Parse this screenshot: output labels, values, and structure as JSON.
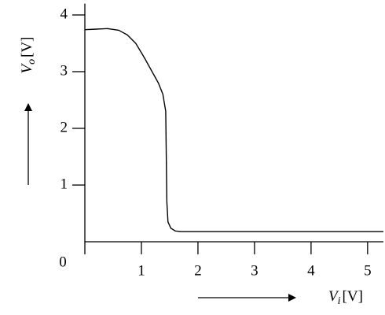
{
  "chart_data": {
    "type": "line",
    "x_label": {
      "symbol": "V",
      "subscript": "i",
      "unit": "[V]"
    },
    "y_label": {
      "symbol": "V",
      "subscript": "o",
      "unit": "[V]"
    },
    "x": [
      0,
      0.2,
      0.4,
      0.6,
      0.75,
      0.9,
      1.05,
      1.2,
      1.3,
      1.38,
      1.43,
      1.44,
      1.45,
      1.47,
      1.52,
      1.6,
      1.7,
      2,
      5.28
    ],
    "series": [
      {
        "color": "#000000",
        "values": [
          3.74,
          3.75,
          3.76,
          3.73,
          3.65,
          3.5,
          3.25,
          2.98,
          2.8,
          2.6,
          2.3,
          1.5,
          0.7,
          0.35,
          0.24,
          0.19,
          0.18,
          0.18,
          0.18
        ]
      }
    ],
    "xlim": [
      0,
      5.28
    ],
    "ylim": [
      0,
      4.2
    ],
    "xticks": [
      0,
      1,
      2,
      3,
      4,
      5
    ],
    "yticks": [
      1,
      2,
      3,
      4
    ],
    "grid": false
  }
}
